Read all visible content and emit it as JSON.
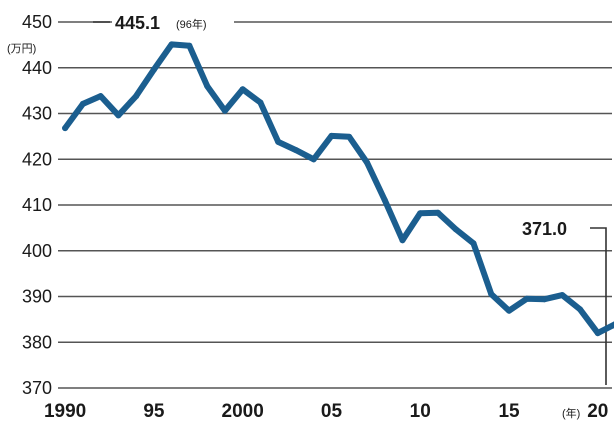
{
  "chart_data": {
    "type": "line",
    "title": "",
    "xlabel": "",
    "ylabel": "",
    "y_unit": "(万円)",
    "x_unit": "(年)",
    "xlim": [
      1989.6,
      2020.8
    ],
    "ylim": [
      370,
      450
    ],
    "y_ticks": [
      370,
      380,
      390,
      400,
      410,
      420,
      430,
      440,
      450
    ],
    "x_ticks": [
      {
        "value": 1990,
        "label": "1990"
      },
      {
        "value": 1995,
        "label": "95"
      },
      {
        "value": 2000,
        "label": "2000"
      },
      {
        "value": 2005,
        "label": "05"
      },
      {
        "value": 2010,
        "label": "10"
      },
      {
        "value": 2015,
        "label": "15"
      },
      {
        "value": 2020,
        "label": "20"
      }
    ],
    "grid": true,
    "line_color": "#1b5e8f",
    "series": [
      {
        "x": [
          1990,
          1991,
          1992,
          1993,
          1994,
          1995,
          1996,
          1997,
          1998,
          1999,
          2000,
          2001,
          2002,
          2003,
          2004,
          2005,
          2006,
          2007,
          2008,
          2009,
          2010,
          2011,
          2012,
          2013,
          2014,
          2015,
          2016,
          2017,
          2018,
          2019,
          2020,
          2021,
          2022
        ],
        "values": [
          426.8,
          432.1,
          433.8,
          429.6,
          433.8,
          439.6,
          445.1,
          444.8,
          436.0,
          430.6,
          435.3,
          432.4,
          423.8,
          422.0,
          420.0,
          425.1,
          424.9,
          419.3,
          411.1,
          402.3,
          408.2,
          408.3,
          404.7,
          401.6,
          390.5,
          386.9,
          389.5,
          389.4,
          390.3,
          387.2,
          382.0,
          384.0,
          371.0
        ]
      }
    ],
    "annotations": [
      {
        "value": "445.1",
        "note": "(96年)"
      },
      {
        "value": "371.0"
      }
    ]
  }
}
